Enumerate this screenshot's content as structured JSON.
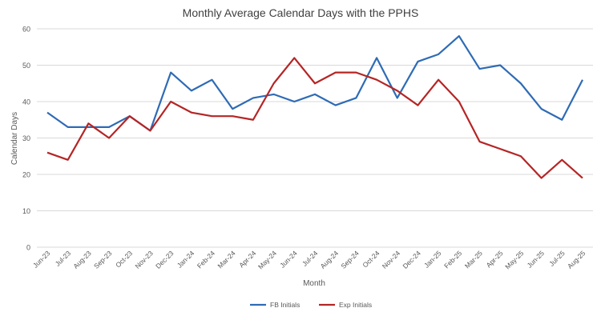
{
  "chart_data": {
    "type": "line",
    "title": "Monthly Average Calendar Days with the PPHS",
    "xlabel": "Month",
    "ylabel": "Calendar Days",
    "ylim": [
      0,
      60
    ],
    "yticks": [
      0,
      10,
      20,
      30,
      40,
      50,
      60
    ],
    "grid": true,
    "legend_position": "bottom",
    "categories": [
      "Jun-23",
      "Jul-23",
      "Aug-23",
      "Sep-23",
      "Oct-23",
      "Nov-23",
      "Dec-23",
      "Jan-24",
      "Feb-24",
      "Mar-24",
      "Apr-24",
      "May-24",
      "Jun-24",
      "Jul-24",
      "Aug-24",
      "Sep-24",
      "Oct-24",
      "Nov-24",
      "Dec-24",
      "Jan-25",
      "Feb-25",
      "Mar-25",
      "Apr-25",
      "May-25",
      "Jun-25",
      "Jul-25",
      "Aug-25"
    ],
    "series": [
      {
        "name": "FB Initials",
        "color": "#2e6bb5",
        "values": [
          37,
          33,
          33,
          33,
          36,
          32,
          48,
          43,
          46,
          38,
          41,
          42,
          40,
          42,
          39,
          41,
          52,
          41,
          51,
          53,
          58,
          49,
          50,
          45,
          38,
          35,
          46
        ]
      },
      {
        "name": "Exp Initials",
        "color": "#b52525",
        "values": [
          26,
          24,
          34,
          30,
          36,
          32,
          40,
          37,
          36,
          36,
          35,
          45,
          52,
          45,
          48,
          48,
          46,
          43,
          39,
          46,
          40,
          29,
          27,
          25,
          19,
          24,
          19
        ]
      }
    ]
  }
}
